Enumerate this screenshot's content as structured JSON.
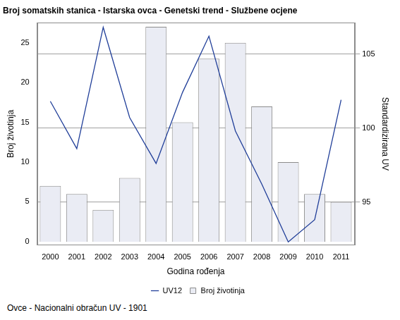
{
  "chart_data": {
    "type": "bar",
    "title": "Broj somatskih stanica - Istarska ovca - Genetski trend - Službene ocjene",
    "x_label": "Godina rođenja",
    "y_label": "Broj životinja",
    "y2_label": "Standardizirana UV",
    "annotations": [
      "Ovce - Nacionalni obračun UV - 1901"
    ],
    "categories": [
      "2000",
      "2001",
      "2002",
      "2003",
      "2004",
      "2005",
      "2006",
      "2007",
      "2008",
      "2009",
      "2010",
      "2011"
    ],
    "series": [
      {
        "name": "Broj životinja",
        "type": "bar",
        "color": "#eaecf4",
        "values": [
          7,
          6,
          4,
          8,
          27,
          15,
          23,
          25,
          17,
          10,
          6,
          5
        ]
      },
      {
        "name": "UV12",
        "type": "line",
        "axis": "y2",
        "color": "#213f99",
        "values": [
          101.8,
          98.6,
          106.8,
          100.7,
          97.6,
          102.4,
          106.2,
          99.8,
          96.2,
          92.3,
          93.8,
          101.9
        ]
      }
    ],
    "ylim": [
      -0.4,
      27.5
    ],
    "yticks": [
      0,
      5,
      10,
      15,
      20,
      25
    ],
    "y2lim": [
      92.1,
      107.1
    ],
    "y2ticks": [
      95,
      100,
      105
    ],
    "grid": true,
    "legend": "bottom"
  }
}
